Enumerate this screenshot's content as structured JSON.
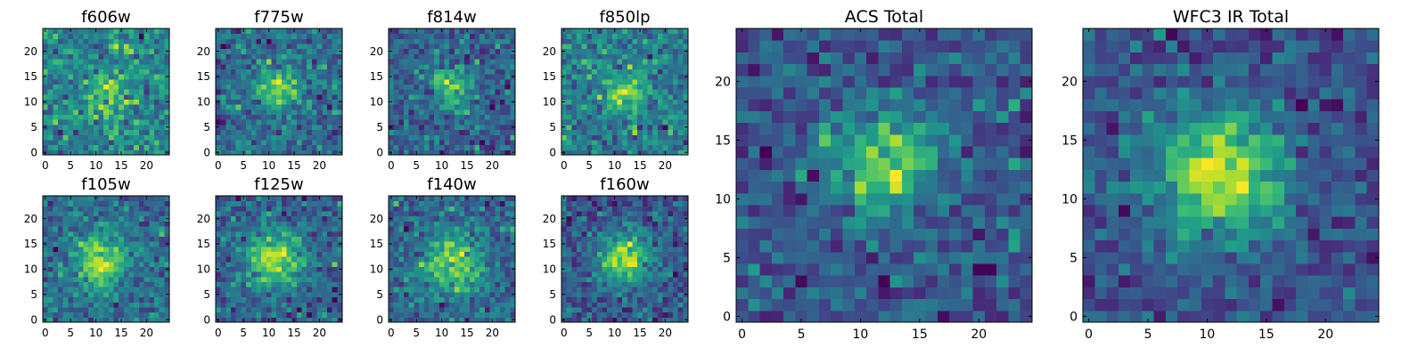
{
  "chart_data": [
    {
      "type": "heatmap",
      "title": "f606w",
      "colormap": "viridis",
      "xlim": [
        0,
        24
      ],
      "ylim": [
        0,
        24
      ],
      "xticks": [
        0,
        5,
        10,
        15,
        20
      ],
      "yticks": [
        0,
        5,
        10,
        15,
        20
      ],
      "peak": [
        12,
        12
      ],
      "signal": 0.35,
      "noise": 0.5,
      "peak_width": 3,
      "seed": 11
    },
    {
      "type": "heatmap",
      "title": "f775w",
      "colormap": "viridis",
      "xlim": [
        0,
        24
      ],
      "ylim": [
        0,
        24
      ],
      "xticks": [
        0,
        5,
        10,
        15,
        20
      ],
      "yticks": [
        0,
        5,
        10,
        15,
        20
      ],
      "peak": [
        12,
        13
      ],
      "signal": 0.5,
      "noise": 0.45,
      "peak_width": 3,
      "seed": 23
    },
    {
      "type": "heatmap",
      "title": "f814w",
      "colormap": "viridis",
      "xlim": [
        0,
        24
      ],
      "ylim": [
        0,
        24
      ],
      "xticks": [
        0,
        5,
        10,
        15,
        20
      ],
      "yticks": [
        0,
        5,
        10,
        15,
        20
      ],
      "peak": [
        12,
        13
      ],
      "signal": 0.5,
      "noise": 0.45,
      "peak_width": 3,
      "seed": 37
    },
    {
      "type": "heatmap",
      "title": "f850lp",
      "colormap": "viridis",
      "xlim": [
        0,
        24
      ],
      "ylim": [
        0,
        24
      ],
      "xticks": [
        0,
        5,
        10,
        15,
        20
      ],
      "yticks": [
        0,
        5,
        10,
        15,
        20
      ],
      "peak": [
        12,
        12
      ],
      "signal": 0.45,
      "noise": 0.45,
      "peak_width": 3,
      "seed": 41
    },
    {
      "type": "heatmap",
      "title": "f105w",
      "colormap": "viridis",
      "xlim": [
        0,
        24
      ],
      "ylim": [
        0,
        24
      ],
      "xticks": [
        0,
        5,
        10,
        15,
        20
      ],
      "yticks": [
        0,
        5,
        10,
        15,
        20
      ],
      "peak": [
        11,
        11
      ],
      "signal": 0.6,
      "noise": 0.35,
      "peak_width": 3.5,
      "seed": 53
    },
    {
      "type": "heatmap",
      "title": "f125w",
      "colormap": "viridis",
      "xlim": [
        0,
        24
      ],
      "ylim": [
        0,
        24
      ],
      "xticks": [
        0,
        5,
        10,
        15,
        20
      ],
      "yticks": [
        0,
        5,
        10,
        15,
        20
      ],
      "peak": [
        11,
        12
      ],
      "signal": 0.6,
      "noise": 0.35,
      "peak_width": 4,
      "seed": 67
    },
    {
      "type": "heatmap",
      "title": "f140w",
      "colormap": "viridis",
      "xlim": [
        0,
        24
      ],
      "ylim": [
        0,
        24
      ],
      "xticks": [
        0,
        5,
        10,
        15,
        20
      ],
      "yticks": [
        0,
        5,
        10,
        15,
        20
      ],
      "peak": [
        12,
        11
      ],
      "signal": 0.55,
      "noise": 0.35,
      "peak_width": 4,
      "seed": 71
    },
    {
      "type": "heatmap",
      "title": "f160w",
      "colormap": "viridis",
      "xlim": [
        0,
        24
      ],
      "ylim": [
        0,
        24
      ],
      "xticks": [
        0,
        5,
        10,
        15,
        20
      ],
      "yticks": [
        0,
        5,
        10,
        15,
        20
      ],
      "peak": [
        12,
        12
      ],
      "signal": 0.6,
      "noise": 0.35,
      "peak_width": 3.5,
      "seed": 83
    },
    {
      "type": "heatmap",
      "title": "ACS Total",
      "colormap": "viridis",
      "xlim": [
        0,
        24
      ],
      "ylim": [
        0,
        24
      ],
      "xticks": [
        0,
        5,
        10,
        15,
        20
      ],
      "yticks": [
        0,
        5,
        10,
        15,
        20
      ],
      "peak": [
        12,
        13
      ],
      "signal": 0.6,
      "noise": 0.35,
      "peak_width": 3,
      "seed": 97
    },
    {
      "type": "heatmap",
      "title": "WFC3 IR Total",
      "colormap": "viridis",
      "xlim": [
        0,
        24
      ],
      "ylim": [
        0,
        24
      ],
      "xticks": [
        0,
        5,
        10,
        15,
        20
      ],
      "yticks": [
        0,
        5,
        10,
        15,
        20
      ],
      "peak": [
        11,
        12
      ],
      "signal": 0.7,
      "noise": 0.3,
      "peak_width": 4,
      "seed": 103
    }
  ],
  "colors": {
    "viridis": [
      "#440154",
      "#482878",
      "#3e4989",
      "#31688e",
      "#26828e",
      "#1f9e89",
      "#35b779",
      "#6ece58",
      "#b5de2b",
      "#fde725"
    ]
  }
}
